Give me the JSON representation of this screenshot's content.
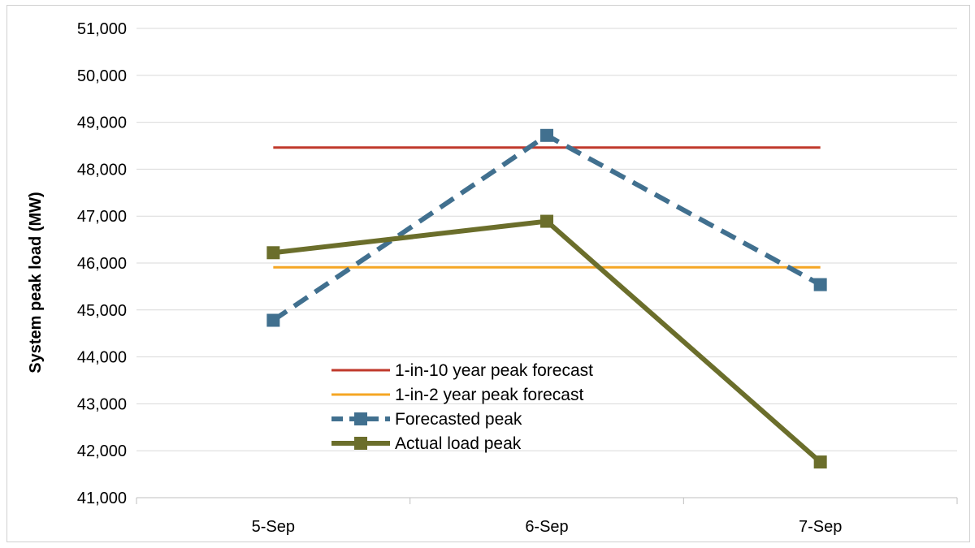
{
  "chart_data": {
    "type": "line",
    "categories": [
      "5-Sep",
      "6-Sep",
      "7-Sep"
    ],
    "ylabel": "System peak load (MW)",
    "xlabel": "",
    "ylim": [
      41000,
      51000
    ],
    "yticks": [
      41000,
      42000,
      43000,
      44000,
      45000,
      46000,
      47000,
      48000,
      49000,
      50000,
      51000
    ],
    "ytick_labels": [
      "41,000",
      "42,000",
      "43,000",
      "44,000",
      "45,000",
      "46,000",
      "47,000",
      "48,000",
      "49,000",
      "50,000",
      "51,000"
    ],
    "grid": true,
    "legend_position": "center-bottom",
    "series": [
      {
        "name": "1-in-10 year peak forecast",
        "values": [
          48460,
          48460,
          48460
        ],
        "color": "#c0392b",
        "style": "solid",
        "marker": "none"
      },
      {
        "name": "1-in-2 year peak forecast",
        "values": [
          45910,
          45910,
          45910
        ],
        "color": "#f5a623",
        "style": "solid",
        "marker": "none"
      },
      {
        "name": "Forecasted peak",
        "values": [
          44780,
          48720,
          45540
        ],
        "color": "#41708f",
        "style": "dashed",
        "marker": "square"
      },
      {
        "name": "Actual load peak",
        "values": [
          46220,
          46890,
          41760
        ],
        "color": "#6b6e2b",
        "style": "solid-thick",
        "marker": "square"
      }
    ]
  }
}
